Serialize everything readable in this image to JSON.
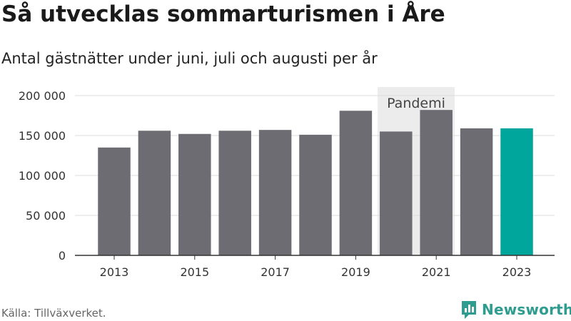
{
  "title": "Så utvecklas sommarturismen i Åre",
  "subtitle": "Antal gästnätter under juni, juli och augusti per år",
  "source": "Källa: Tillväxverket.",
  "brand": {
    "name": "Newsworthy",
    "color": "#2e9c8e"
  },
  "colors": {
    "bar": "#6d6c72",
    "highlight": "#00a59b",
    "band": "#ececec",
    "grid": "#dddddd"
  },
  "icons": {
    "logo": "newsworthy-chart-icon"
  },
  "chart_data": {
    "type": "bar",
    "categories": [
      "2013",
      "2014",
      "2015",
      "2016",
      "2017",
      "2018",
      "2019",
      "2020",
      "2021",
      "2022",
      "2023"
    ],
    "values": [
      135000,
      156000,
      152000,
      156000,
      157000,
      151000,
      181000,
      155000,
      182000,
      159000,
      159000
    ],
    "x_tick_labels": [
      "2013",
      "2015",
      "2017",
      "2019",
      "2021",
      "2023"
    ],
    "y_ticks": [
      0,
      50000,
      100000,
      150000,
      200000
    ],
    "y_tick_labels": [
      "0",
      "50 000",
      "100 000",
      "150 000",
      "200 000"
    ],
    "ylim": [
      0,
      200000
    ],
    "highlight_category": "2023",
    "annotation": {
      "label": "Pandemi",
      "from": "2020",
      "to": "2021"
    },
    "grid": true,
    "xlabel": "",
    "ylabel": ""
  }
}
